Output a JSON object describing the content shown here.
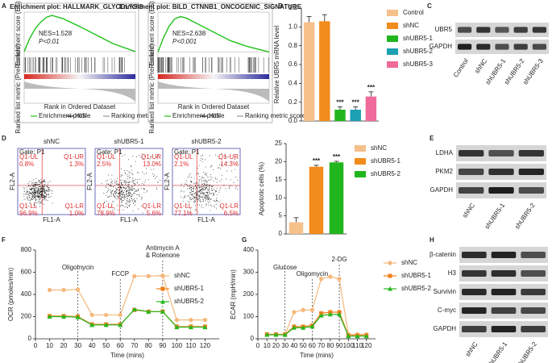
{
  "panel_labels": [
    "A",
    "B",
    "C",
    "D",
    "E",
    "F",
    "G",
    "H"
  ],
  "chart_data": [
    {
      "type": "gsea",
      "title": "Enrichment plot: HALLMARK_GLYCOLYSIS",
      "nes": "NES=1.528",
      "p": "P<0.01",
      "ylabel": "Enrichment score (ES)",
      "ylabel2": "Ranked list metric (PreRanked)",
      "xlabel": "Rank in Ordered Dataset",
      "legend": [
        "Enrichment profile",
        "Hits",
        "Ranking metric scores"
      ],
      "x": [
        0,
        1000,
        2000,
        3000,
        4000,
        5000,
        7000,
        10000,
        13000,
        16000,
        20000
      ],
      "values": [
        0,
        0.2,
        0.35,
        0.45,
        0.52,
        0.55,
        0.5,
        0.38,
        0.25,
        0.12,
        0
      ],
      "xlim": [
        0,
        20000
      ],
      "ylim": [
        -0.05,
        0.6
      ],
      "color": "#21c11c"
    },
    {
      "type": "gsea",
      "title": "Enrichment plot: BILD_CTNNB1_ONCOGENIC_SIGNATURE",
      "nes": "NES=2.638",
      "p": "P<0.001",
      "ylabel": "Enrichment score (ES)",
      "ylabel2": "Ranked list metric (PreRanked)",
      "xlabel": "Rank in Ordered Dataset",
      "legend": [
        "Enrichment profile",
        "Hits",
        "Ranking metric scores"
      ],
      "x": [
        0,
        1000,
        2000,
        3000,
        4000,
        5000,
        7000,
        10000,
        13000,
        16000,
        20000
      ],
      "values": [
        0,
        0.25,
        0.45,
        0.58,
        0.62,
        0.6,
        0.5,
        0.35,
        0.2,
        0.1,
        0
      ],
      "xlim": [
        0,
        20000
      ],
      "ylim": [
        -0.05,
        0.7
      ],
      "color": "#21c11c"
    },
    {
      "type": "bar",
      "ylabel": "Relative UBR5 mRNA level",
      "categories": [
        "Control",
        "shNC",
        "shUBR5-1",
        "shUBR5-2",
        "shUBR5-3"
      ],
      "values": [
        1.05,
        1.06,
        0.12,
        0.12,
        0.26
      ],
      "errors": [
        0.06,
        0.07,
        0.03,
        0.03,
        0.05
      ],
      "significance": [
        null,
        null,
        "***",
        "***",
        "***"
      ],
      "colors": [
        "#f5c08a",
        "#f28c1c",
        "#22b61e",
        "#1a9fb3",
        "#f06a9a"
      ],
      "ylim": [
        0,
        1.2
      ],
      "yticks": [
        {
          "value": 0,
          "label": "0.0"
        },
        0.2,
        0.4,
        0.6,
        0.8,
        {
          "value": 1,
          "label": "1.0"
        },
        1.2
      ],
      "legend": "right"
    },
    {
      "type": "bar",
      "ylabel": "Apoptotic cells (%)",
      "categories": [
        "shNC",
        "shUBR5-1",
        "shUBR5-2"
      ],
      "values": [
        3.2,
        18.6,
        19.8
      ],
      "errors": [
        1.3,
        0.4,
        0.3
      ],
      "significance": [
        null,
        "***",
        "***"
      ],
      "colors": [
        "#f5c08a",
        "#f28c1c",
        "#22b61e"
      ],
      "ylim": [
        0,
        25
      ],
      "yticks": [
        0,
        5,
        10,
        15,
        20,
        25
      ],
      "legend": "right"
    },
    {
      "type": "line",
      "xlabel": "Time (mins)",
      "ylabel": "OCR (pmoles/min)",
      "x": [
        10,
        20,
        30,
        40,
        50,
        60,
        70,
        80,
        90,
        100,
        110,
        120
      ],
      "series": [
        {
          "name": "shNC",
          "color": "#f5b77a",
          "marker": "circle",
          "values": [
            440,
            440,
            445,
            215,
            215,
            215,
            565,
            565,
            570,
            170,
            170,
            170
          ]
        },
        {
          "name": "shUBR5-1",
          "color": "#f07f1a",
          "marker": "square",
          "values": [
            205,
            205,
            200,
            130,
            130,
            130,
            260,
            245,
            245,
            110,
            110,
            110
          ]
        },
        {
          "name": "shUBR5-2",
          "color": "#27b81f",
          "marker": "triangle",
          "values": [
            200,
            200,
            195,
            125,
            125,
            125,
            265,
            245,
            245,
            105,
            105,
            105
          ]
        }
      ],
      "annotations": [
        {
          "x": 30,
          "lines": [
            "Oligomycin"
          ]
        },
        {
          "x": 60,
          "lines": [
            "FCCP"
          ]
        },
        {
          "x": 90,
          "lines": [
            "Antimycin A",
            "& Rotenone"
          ]
        }
      ],
      "xlim": [
        0,
        130
      ],
      "xticks": [
        0,
        10,
        20,
        30,
        40,
        50,
        60,
        70,
        80,
        90,
        100,
        110,
        120
      ],
      "ylim": [
        0,
        800
      ],
      "yticks": [
        0,
        200,
        400,
        600,
        800
      ],
      "legend": "upper right"
    },
    {
      "type": "line",
      "xlabel": "Time (mins)",
      "ylabel": "ECAR (mpH/min)",
      "x": [
        10,
        20,
        30,
        40,
        50,
        60,
        70,
        80,
        90,
        100,
        110,
        120
      ],
      "series": [
        {
          "name": "shNC",
          "color": "#f5b77a",
          "marker": "circle",
          "values": [
            20,
            20,
            20,
            120,
            130,
            130,
            270,
            280,
            270,
            20,
            20,
            20
          ]
        },
        {
          "name": "shUBR5-1",
          "color": "#f07f1a",
          "marker": "square",
          "values": [
            20,
            20,
            20,
            55,
            55,
            60,
            115,
            120,
            120,
            15,
            15,
            15
          ]
        },
        {
          "name": "shUBR5-2",
          "color": "#27b81f",
          "marker": "triangle",
          "values": [
            18,
            18,
            18,
            50,
            50,
            55,
            105,
            110,
            110,
            12,
            12,
            12
          ]
        }
      ],
      "annotations": [
        {
          "x": 30,
          "lines": [
            "Glucose"
          ]
        },
        {
          "x": 60,
          "lines": [
            "Oligomycin"
          ]
        },
        {
          "x": 90,
          "lines": [
            "2-DG"
          ]
        }
      ],
      "xlim": [
        0,
        130
      ],
      "xticks": [
        0,
        10,
        20,
        30,
        40,
        50,
        60,
        70,
        80,
        90,
        100,
        110,
        120
      ],
      "ylim": [
        0,
        400
      ],
      "yticks": [
        0,
        100,
        200,
        300,
        400
      ],
      "legend": "right"
    }
  ],
  "flow": {
    "gate": "Gate: P1",
    "xlabel": "FL1-A",
    "ylabel": "FL2-A",
    "panels": [
      {
        "title": "shNC",
        "quadrants": [
          "Q1-UL\n0.8%",
          "Q1-UR\n1.3%",
          "Q1-LL\n96.9%",
          "Q1-LR\n1.0%"
        ]
      },
      {
        "title": "shUBR5-1",
        "quadrants": [
          "Q1-UL\n2.5%",
          "Q1-UR\n13.0%",
          "Q1-LL\n78.9%",
          "Q1-LR\n5.6%"
        ]
      },
      {
        "title": "shUBR5-2",
        "quadrants": [
          "Q1-UL\n2.1%",
          "Q1-UR\n14.3%",
          "Q1-LL\n77.1%",
          "Q1-LR\n6.5%"
        ]
      }
    ]
  },
  "blots": [
    {
      "rows": [
        "UBR5",
        "GAPDH"
      ],
      "lanes": [
        "Control",
        "shNC",
        "shUBR5-1",
        "shUBR5-2",
        "shUBR5-3"
      ]
    },
    {
      "rows": [
        "LDHA",
        "PKM2",
        "GAPDH"
      ],
      "lanes": [
        "shNC",
        "shUBR5-1",
        "shUBR5-2"
      ]
    },
    {
      "rows": [
        "β-catenin",
        "H3",
        "Survivin",
        "C-myc",
        "GAPDH"
      ],
      "lanes": [
        "shNC",
        "shUBR5-1",
        "shUBR5-2"
      ]
    }
  ]
}
